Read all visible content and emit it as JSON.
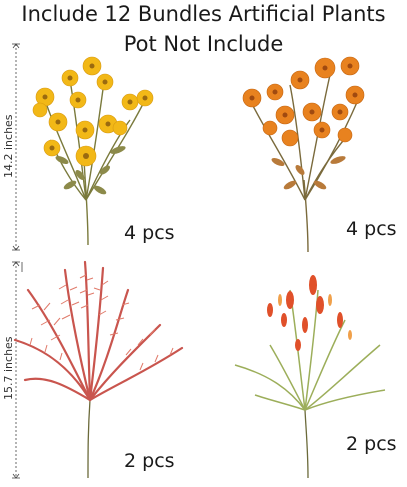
{
  "header": {
    "line1": "Include 12 Bundles Artificial Plants",
    "line2": "Pot Not Include"
  },
  "measurements": {
    "top_height": "14.2 inches",
    "bottom_height": "15.7 inches"
  },
  "products": [
    {
      "name": "yellow-daisy-bundle",
      "quantity": "4 pcs"
    },
    {
      "name": "orange-daisy-bundle",
      "quantity": "4 pcs"
    },
    {
      "name": "pink-fern-bundle",
      "quantity": "2 pcs"
    },
    {
      "name": "red-grass-bundle",
      "quantity": "2 pcs"
    }
  ],
  "colors": {
    "yellow_flower": "#f2b817",
    "orange_flower": "#e8821f",
    "fern": "#c9554e",
    "grass": "#9cae5a",
    "stem": "#6b6a3a"
  }
}
